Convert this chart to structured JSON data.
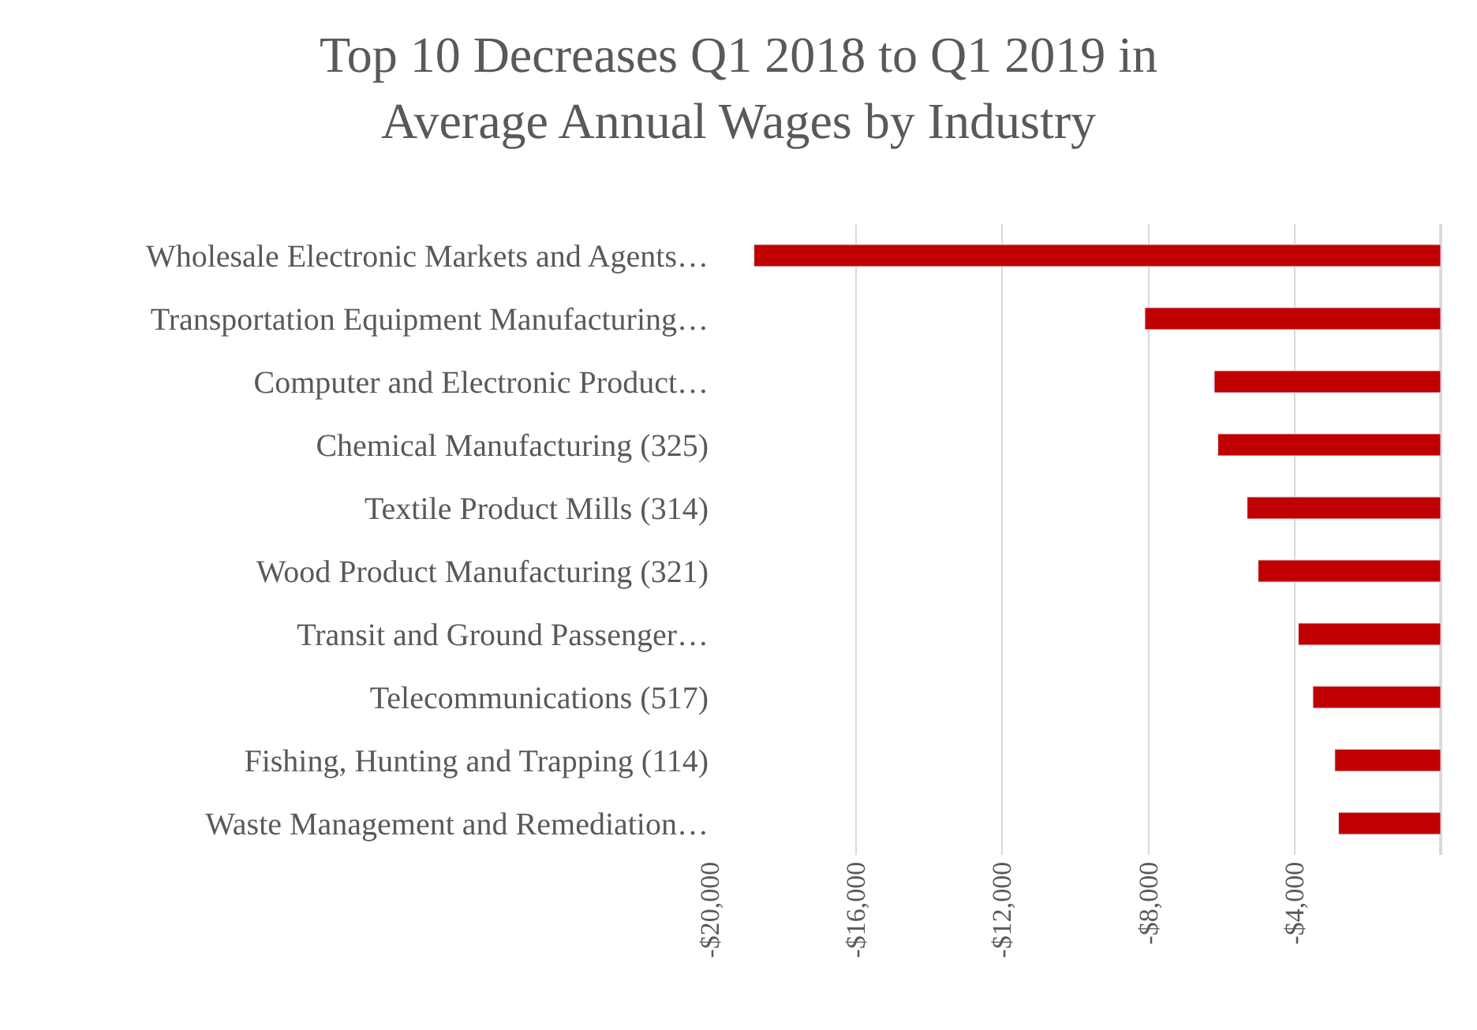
{
  "chart_data": {
    "type": "bar",
    "orientation": "horizontal",
    "title": "Top 10 Decreases Q1 2018 to Q1 2019 in\nAverage Annual Wages by Industry",
    "categories": [
      "Wholesale Electronic Markets and Agents…",
      "Transportation Equipment Manufacturing…",
      "Computer and Electronic Product…",
      "Chemical Manufacturing (325)",
      "Textile Product Mills (314)",
      "Wood Product Manufacturing (321)",
      "Transit and Ground Passenger…",
      "Telecommunications (517)",
      "Fishing, Hunting and Trapping (114)",
      "Waste Management and Remediation…"
    ],
    "series": [
      {
        "color": "#c00000",
        "values": [
          -18800,
          -8100,
          -6200,
          -6100,
          -5300,
          -5000,
          -3900,
          -3500,
          -2900,
          -2800
        ]
      }
    ],
    "xlim": [
      -20000,
      0
    ],
    "xticks": [
      {
        "value": -20000,
        "label": "-$20,000"
      },
      {
        "value": -16000,
        "label": "-$16,000"
      },
      {
        "value": -12000,
        "label": "-$12,000"
      },
      {
        "value": -8000,
        "label": "-$8,000"
      },
      {
        "value": -4000,
        "label": "-$4,000"
      }
    ],
    "grid": "x",
    "legend": false
  }
}
